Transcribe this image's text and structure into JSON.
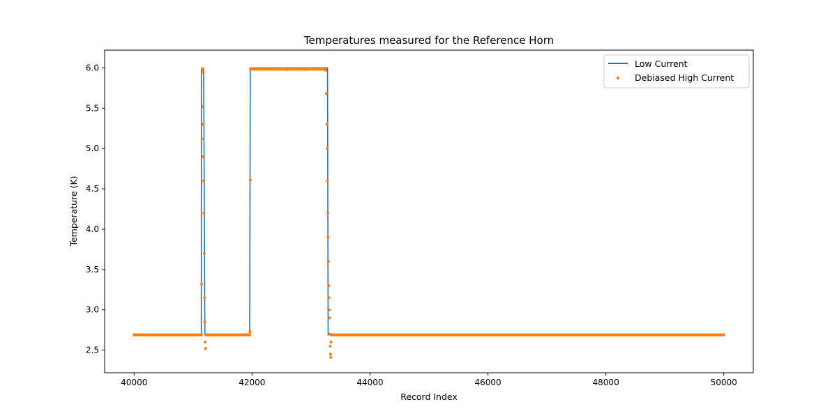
{
  "chart_data": {
    "type": "line",
    "title": "Temperatures measured for the Reference Horn",
    "xlabel": "Record Index",
    "ylabel": "Temperature (K)",
    "xlim": [
      39500,
      50500
    ],
    "ylim": [
      2.22,
      6.22
    ],
    "xticks": [
      40000,
      42000,
      44000,
      46000,
      48000,
      50000
    ],
    "yticks": [
      2.5,
      3.0,
      3.5,
      4.0,
      4.5,
      5.0,
      5.5,
      6.0
    ],
    "grid": false,
    "legend_position": "top-right",
    "series": [
      {
        "name": "Low Current",
        "kind": "line",
        "color": "#1f77b4",
        "x": [
          40000,
          41140,
          41141,
          41180,
          41200,
          41201,
          41960,
          41970,
          42300,
          42600,
          42900,
          43280,
          43290,
          43330,
          43340,
          50000
        ],
        "y": [
          2.69,
          2.69,
          5.98,
          5.98,
          2.69,
          2.69,
          2.69,
          6.0,
          6.0,
          6.0,
          6.0,
          6.0,
          2.69,
          2.69,
          2.69,
          2.69
        ]
      },
      {
        "name": "Debiased High Current",
        "kind": "scatter",
        "color": "#ff7f0e",
        "x": [
          40000,
          41140,
          41145,
          41150,
          41155,
          41160,
          41165,
          41170,
          41175,
          41180,
          41185,
          41190,
          41195,
          41200,
          41205,
          41210,
          41215,
          41220,
          41960,
          41965,
          41970,
          41975,
          42300,
          42600,
          42900,
          43250,
          43260,
          43270,
          43275,
          43280,
          43285,
          43290,
          43295,
          43300,
          43305,
          43310,
          43315,
          43320,
          43325,
          43330,
          43335,
          43340,
          50000
        ],
        "y": [
          2.69,
          2.69,
          3.32,
          5.12,
          5.95,
          5.99,
          5.52,
          5.3,
          4.9,
          4.6,
          4.2,
          3.7,
          3.15,
          2.85,
          2.6,
          2.52,
          2.69,
          2.69,
          2.69,
          2.73,
          4.61,
          5.98,
          5.99,
          5.98,
          5.98,
          5.97,
          5.68,
          5.3,
          5.0,
          4.6,
          4.2,
          3.9,
          3.6,
          3.3,
          3.15,
          3.0,
          2.9,
          2.7,
          2.55,
          2.45,
          2.41,
          2.6,
          2.69
        ]
      }
    ]
  }
}
